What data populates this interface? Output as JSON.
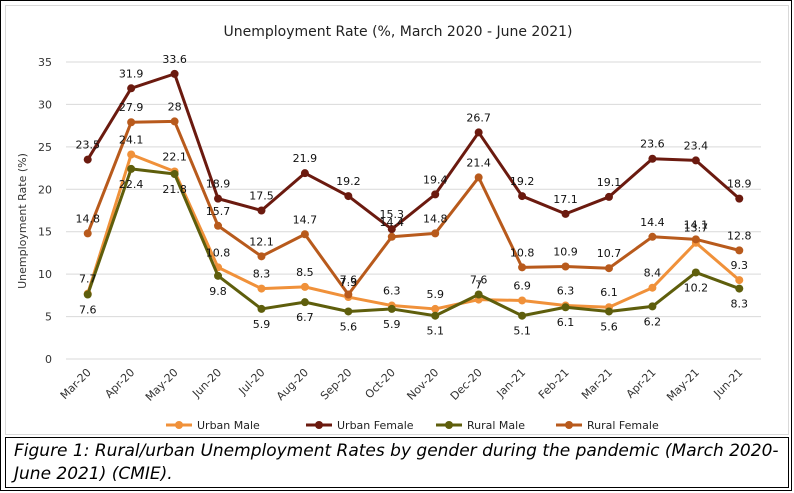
{
  "caption": "Figure 1: Rural/urban Unemployment Rates by gender during the pandemic (March 2020-June 2021) (CMIE).",
  "chart_data": {
    "type": "line",
    "title": "Unemployment Rate (%, March 2020 - June 2021)",
    "xlabel": "",
    "ylabel": "Unemployment Rate (%)",
    "ylim": [
      0,
      35
    ],
    "yticks": [
      0,
      5,
      10,
      15,
      20,
      25,
      30,
      35
    ],
    "grid": true,
    "legend": "bottom",
    "categories": [
      "Mar-20",
      "Apr-20",
      "May-20",
      "Jun-20",
      "Jul-20",
      "Aug-20",
      "Sep-20",
      "Oct-20",
      "Nov-20",
      "Dec-20",
      "Jan-21",
      "Feb-21",
      "Mar-21",
      "Apr-21",
      "May-21",
      "Jun-21"
    ],
    "series": [
      {
        "name": "Urban Male",
        "color": "#f0913a",
        "values": [
          7.7,
          24.1,
          22.1,
          10.8,
          8.3,
          8.5,
          7.3,
          6.3,
          5.9,
          7,
          6.9,
          6.3,
          6.1,
          8.4,
          13.7,
          9.3
        ]
      },
      {
        "name": "Urban Female",
        "color": "#6b1a0f",
        "values": [
          23.5,
          31.9,
          33.6,
          18.9,
          17.5,
          21.9,
          19.2,
          15.3,
          19.4,
          26.7,
          19.2,
          17.1,
          19.1,
          23.6,
          23.4,
          18.9
        ]
      },
      {
        "name": "Rural Male",
        "color": "#5e5e0c",
        "values": [
          7.6,
          22.4,
          21.8,
          9.8,
          5.9,
          6.7,
          5.6,
          5.9,
          5.1,
          7.6,
          5.1,
          6.1,
          5.6,
          6.2,
          10.2,
          8.3
        ]
      },
      {
        "name": "Rural Female",
        "color": "#b85a1c",
        "values": [
          14.8,
          27.9,
          28.0,
          15.7,
          12.1,
          14.7,
          7.6,
          14.4,
          14.8,
          21.4,
          10.8,
          10.9,
          10.7,
          14.4,
          14.1,
          12.8
        ]
      }
    ]
  }
}
